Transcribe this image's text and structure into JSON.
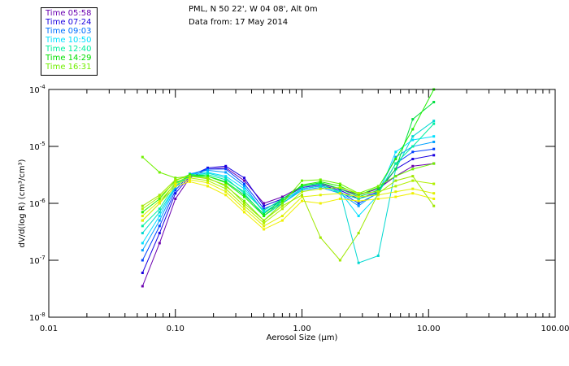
{
  "chart_data": {
    "type": "line",
    "title": "PML, N 50 22', W 04 08', Alt 0m",
    "subtitle": "Data from: 17 May 2014",
    "xlabel": "Aerosol Size (μm)",
    "ylabel": "dV/d(log R) (cm³/cm³)",
    "xscale": "log",
    "yscale": "log",
    "xlim": [
      0.01,
      100
    ],
    "ylim": [
      1e-08,
      0.0001
    ],
    "xticks": [
      {
        "v": 0.01,
        "label": "0.01"
      },
      {
        "v": 0.1,
        "label": "0.10"
      },
      {
        "v": 1,
        "label": "1.00"
      },
      {
        "v": 10,
        "label": "10.00"
      },
      {
        "v": 100,
        "label": "100.00"
      }
    ],
    "yticks": [
      {
        "v": 0.0001,
        "exp": "-4"
      },
      {
        "v": 1e-05,
        "exp": "-5"
      },
      {
        "v": 1e-06,
        "exp": "-6"
      },
      {
        "v": 1e-07,
        "exp": "-7"
      },
      {
        "v": 1e-08,
        "exp": "-8"
      }
    ],
    "legend_position": "top-left",
    "legend": [
      {
        "label": "Time 05:58",
        "color": "#6a00b0"
      },
      {
        "label": "Time 07:24",
        "color": "#1a00e0"
      },
      {
        "label": "Time 09:03",
        "color": "#0070ff"
      },
      {
        "label": "Time 10:50",
        "color": "#00e0ff"
      },
      {
        "label": "Time 12:40",
        "color": "#00f0a0"
      },
      {
        "label": "Time 14:29",
        "color": "#00e000"
      },
      {
        "label": "Time 16:31",
        "color": "#70f000"
      }
    ],
    "x": [
      0.055,
      0.075,
      0.1,
      0.13,
      0.18,
      0.25,
      0.35,
      0.5,
      0.7,
      1.0,
      1.4,
      2.0,
      2.8,
      4.0,
      5.5,
      7.5,
      11
    ],
    "series": [
      {
        "color": "#6a00b0",
        "values": [
          3.5e-08,
          2e-07,
          1.2e-06,
          2.8e-06,
          4e-06,
          4.2e-06,
          2.5e-06,
          1e-06,
          1.3e-06,
          2e-06,
          2.2e-06,
          1.8e-06,
          1.4e-06,
          1.8e-06,
          3e-06,
          4.5e-06,
          5e-06
        ]
      },
      {
        "color": "#1a00e0",
        "values": [
          6e-08,
          3e-07,
          1.5e-06,
          3e-06,
          4.2e-06,
          4.5e-06,
          2.8e-06,
          9e-07,
          1.2e-06,
          1.9e-06,
          2.1e-06,
          1.7e-06,
          1.2e-06,
          1.6e-06,
          4e-06,
          6e-06,
          7e-06
        ]
      },
      {
        "color": "#0040ff",
        "values": [
          1e-07,
          4e-07,
          1.7e-06,
          3.2e-06,
          4e-06,
          4e-06,
          2.2e-06,
          8e-07,
          1.1e-06,
          1.8e-06,
          2e-06,
          1.6e-06,
          1e-06,
          1.5e-06,
          5e-06,
          8e-06,
          9e-06
        ]
      },
      {
        "color": "#00a0ff",
        "values": [
          1.5e-07,
          5e-07,
          1.9e-06,
          3.3e-06,
          3.8e-06,
          3.5e-06,
          2e-06,
          7e-07,
          1e-06,
          1.7e-06,
          1.9e-06,
          1.5e-06,
          9e-07,
          1.6e-06,
          6.5e-06,
          1e-05,
          1.2e-05
        ]
      },
      {
        "color": "#00e0ff",
        "values": [
          2e-07,
          6e-07,
          2e-06,
          3.2e-06,
          3.5e-06,
          3e-06,
          1.8e-06,
          7e-07,
          1.1e-06,
          1.8e-06,
          2e-06,
          1.6e-06,
          6e-07,
          1.4e-06,
          8e-06,
          1.3e-05,
          1.5e-05
        ]
      },
      {
        "color": "#00d8d0",
        "values": [
          3e-07,
          7e-07,
          2e-06,
          3e-06,
          3.4e-06,
          2.8e-06,
          1.5e-06,
          6e-07,
          1e-06,
          1.8e-06,
          2e-06,
          1.6e-06,
          9e-08,
          1.2e-07,
          4e-06,
          1.5e-05,
          2.8e-05
        ]
      },
      {
        "color": "#00f0a0",
        "values": [
          4e-07,
          8e-07,
          2.2e-06,
          3e-06,
          3.2e-06,
          2.6e-06,
          1.6e-06,
          7.5e-07,
          1.2e-06,
          2e-06,
          2.2e-06,
          1.5e-06,
          1.2e-06,
          1.5e-06,
          5e-06,
          1e-05,
          2.5e-05
        ]
      },
      {
        "color": "#00e040",
        "values": [
          5e-07,
          1e-06,
          2.3e-06,
          3e-06,
          3e-06,
          2.4e-06,
          1.4e-06,
          6.5e-07,
          1.2e-06,
          2e-06,
          2.3e-06,
          1.8e-06,
          1.3e-06,
          1.7e-06,
          4e-06,
          3e-05,
          6e-05
        ]
      },
      {
        "color": "#20f000",
        "values": [
          7e-07,
          1.2e-06,
          2.5e-06,
          3.2e-06,
          3e-06,
          2.3e-06,
          1.3e-06,
          6e-07,
          1.1e-06,
          2.1e-06,
          2.4e-06,
          2e-06,
          1.4e-06,
          1.9e-06,
          6e-06,
          2e-05,
          0.0001
        ]
      },
      {
        "color": "#70f000",
        "values": [
          6.5e-06,
          3.5e-06,
          2.8e-06,
          3e-06,
          2.8e-06,
          2e-06,
          1.1e-06,
          5e-07,
          1e-06,
          2.5e-06,
          2.6e-06,
          2.2e-06,
          1.5e-06,
          2e-06,
          3e-06,
          4e-06,
          5e-06
        ]
      },
      {
        "color": "#b0f000",
        "values": [
          8e-07,
          1.3e-06,
          2.4e-06,
          2.8e-06,
          2.5e-06,
          1.8e-06,
          9e-07,
          4.5e-07,
          8e-07,
          1.6e-06,
          1.8e-06,
          1.9e-06,
          1.5e-06,
          1.6e-06,
          2e-06,
          2.5e-06,
          2.2e-06
        ]
      },
      {
        "color": "#e0f000",
        "values": [
          6e-07,
          1.1e-06,
          2.2e-06,
          2.6e-06,
          2.3e-06,
          1.6e-06,
          8e-07,
          4e-07,
          6e-07,
          1.3e-06,
          1.4e-06,
          1.5e-06,
          1.3e-06,
          1.4e-06,
          1.6e-06,
          1.8e-06,
          1.5e-06
        ]
      },
      {
        "color": "#f0f000",
        "values": [
          5e-07,
          1e-06,
          2e-06,
          2.4e-06,
          2e-06,
          1.4e-06,
          7e-07,
          3.5e-07,
          5e-07,
          1.1e-06,
          1e-06,
          1.2e-06,
          1.1e-06,
          1.2e-06,
          1.3e-06,
          1.5e-06,
          1.2e-06
        ]
      },
      {
        "color": "#a0e800",
        "values": [
          9e-07,
          1.4e-06,
          2.6e-06,
          3e-06,
          2.7e-06,
          2.1e-06,
          1e-06,
          5e-07,
          9e-07,
          1.4e-06,
          2.5e-07,
          1e-07,
          3e-07,
          1.5e-06,
          2.5e-06,
          3e-06,
          9e-07
        ]
      }
    ]
  }
}
